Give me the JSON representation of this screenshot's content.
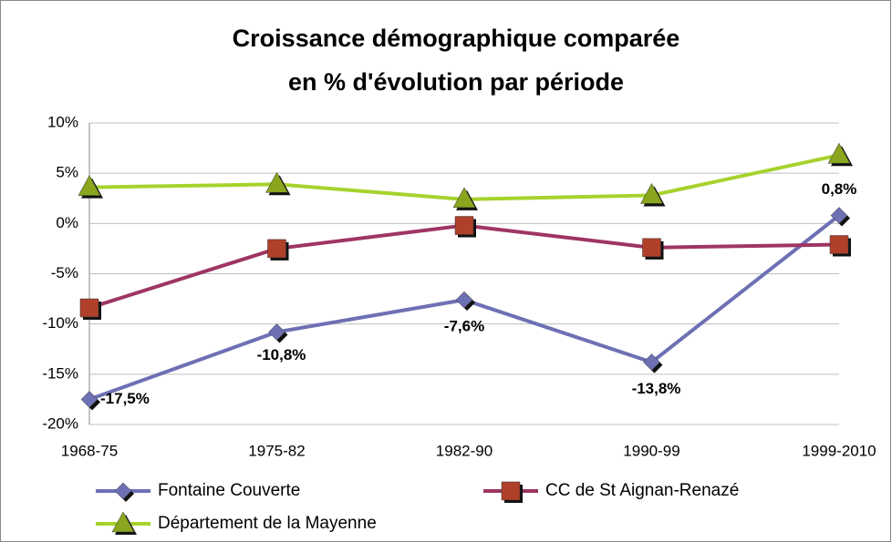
{
  "chart_data": {
    "type": "line",
    "title": [
      "Croissance démographique comparée",
      "en % d'évolution par période"
    ],
    "categories": [
      "1968-75",
      "1975-82",
      "1982-90",
      "1990-99",
      "1999-2010"
    ],
    "series": [
      {
        "name": "Fontaine Couverte",
        "color": "#6e70b4",
        "marker": "diamond",
        "marker_color": "#6e70b4",
        "values": [
          -17.5,
          -10.8,
          -7.6,
          -13.8,
          0.8
        ],
        "value_labels": [
          "-17,5%",
          "-10,8%",
          "-7,6%",
          "-13,8%",
          "0,8%"
        ]
      },
      {
        "name": "CC de St Aignan-Renazé",
        "color": "#9e3563",
        "marker": "square",
        "marker_color": "#b0402a",
        "values": [
          -8.4,
          -2.5,
          -0.2,
          -2.4,
          -2.1
        ]
      },
      {
        "name": "Département de la Mayenne",
        "color": "#a6d22c",
        "marker": "triangle",
        "marker_color": "#8aa51e",
        "values": [
          3.6,
          3.9,
          2.4,
          2.8,
          6.8
        ]
      }
    ],
    "ylim": [
      -20,
      10
    ],
    "yticks": [
      {
        "value": -20,
        "label": "-20%"
      },
      {
        "value": -15,
        "label": "-15%"
      },
      {
        "value": -10,
        "label": "-10%"
      },
      {
        "value": -5,
        "label": "-5%"
      },
      {
        "value": 0,
        "label": "0%"
      },
      {
        "value": 5,
        "label": "5%"
      },
      {
        "value": 10,
        "label": "10%"
      }
    ],
    "grid": true
  }
}
